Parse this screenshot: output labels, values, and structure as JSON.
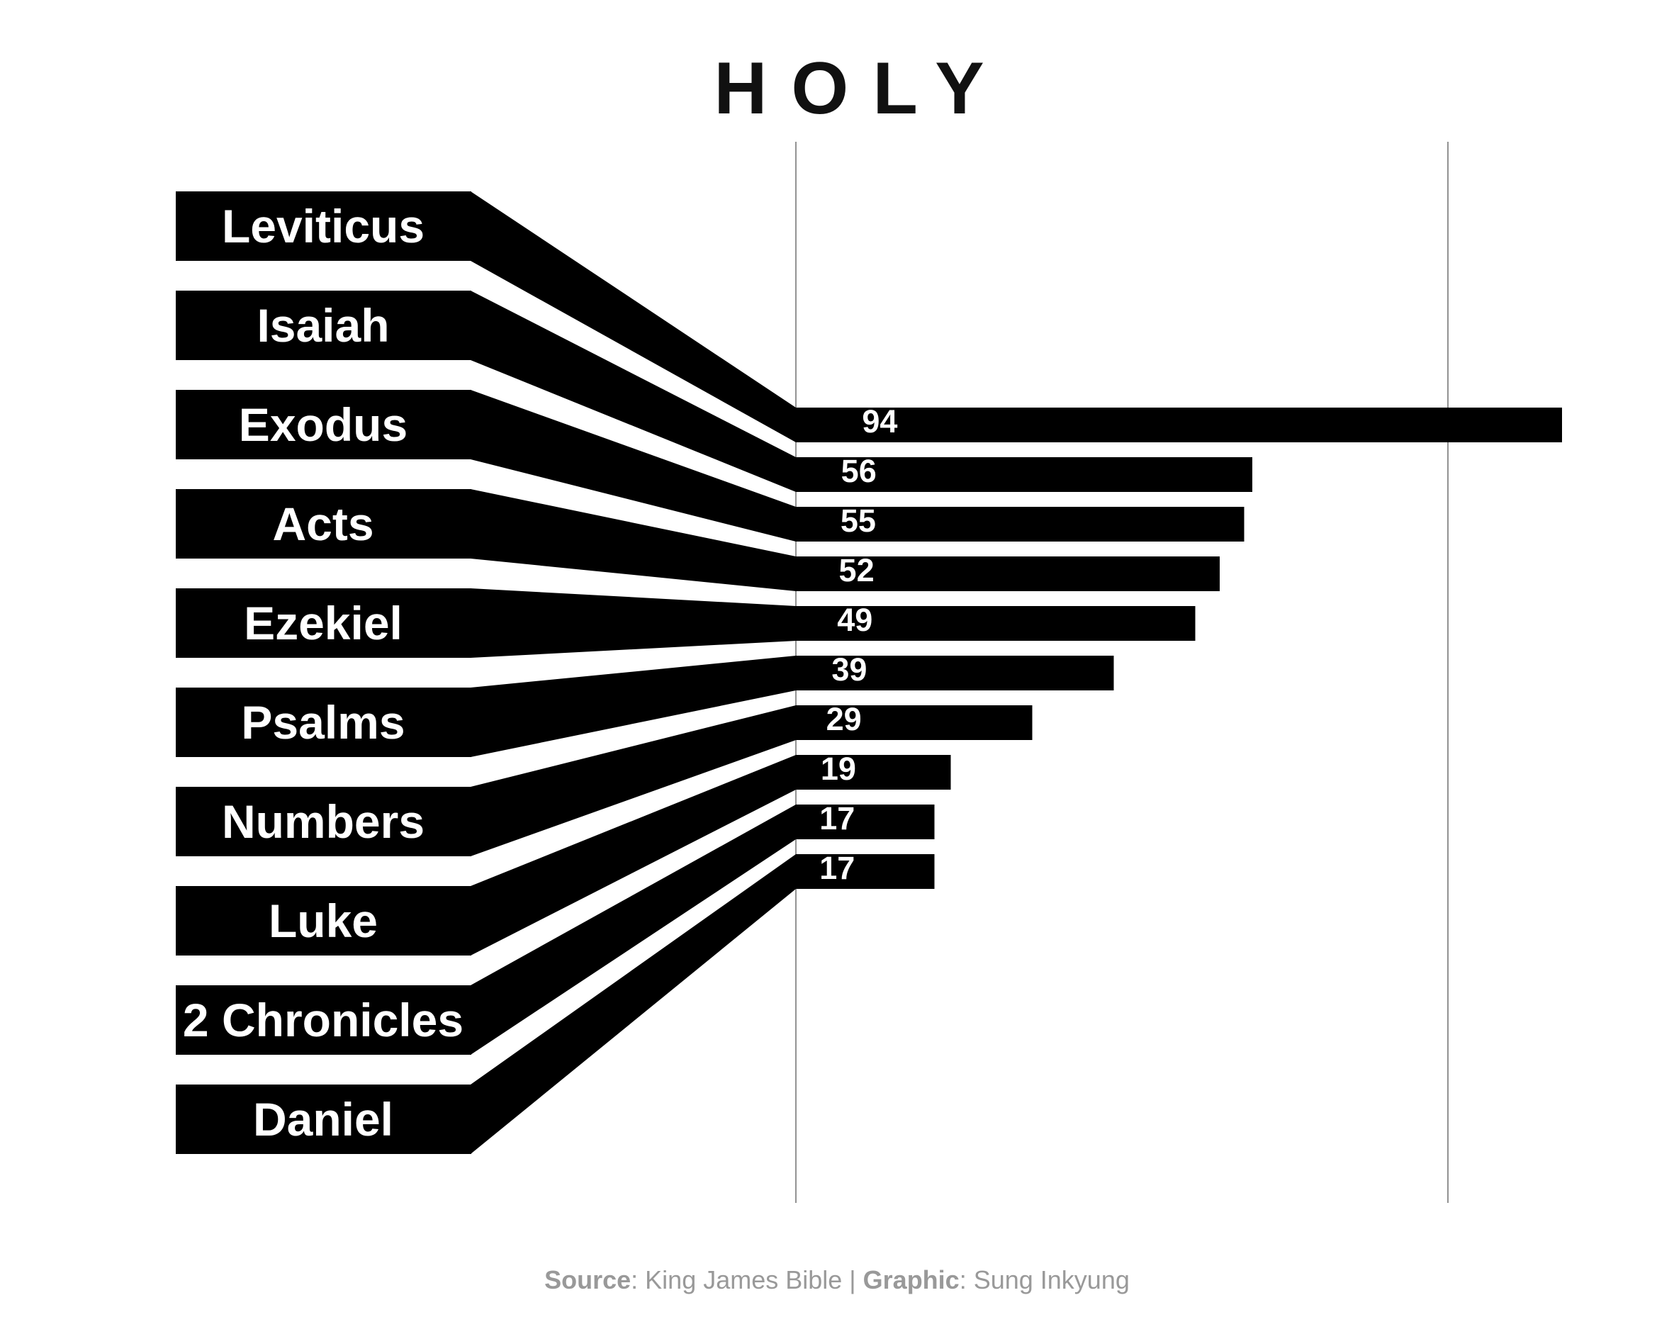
{
  "chart_data": {
    "type": "bar",
    "title": "HOLY",
    "categories": [
      "Leviticus",
      "Isaiah",
      "Exodus",
      "Acts",
      "Ezekiel",
      "Psalms",
      "Numbers",
      "Luke",
      "2 Chronicles",
      "Daniel"
    ],
    "values": [
      94,
      56,
      55,
      52,
      49,
      39,
      29,
      19,
      17,
      17
    ],
    "xlim": [
      0,
      100
    ],
    "gridlines": [
      0,
      80
    ],
    "orientation": "horizontal",
    "grid": true,
    "legend": "none"
  },
  "footer": {
    "source_label": "Source",
    "source_value": ": King James Bible | ",
    "graphic_label": "Graphic",
    "graphic_value": ": Sung Inkyung"
  },
  "colors": {
    "bar": "#000000",
    "text_on_bar": "#ffffff",
    "grid": "#777777",
    "footer": "#999999",
    "title": "#111111"
  }
}
